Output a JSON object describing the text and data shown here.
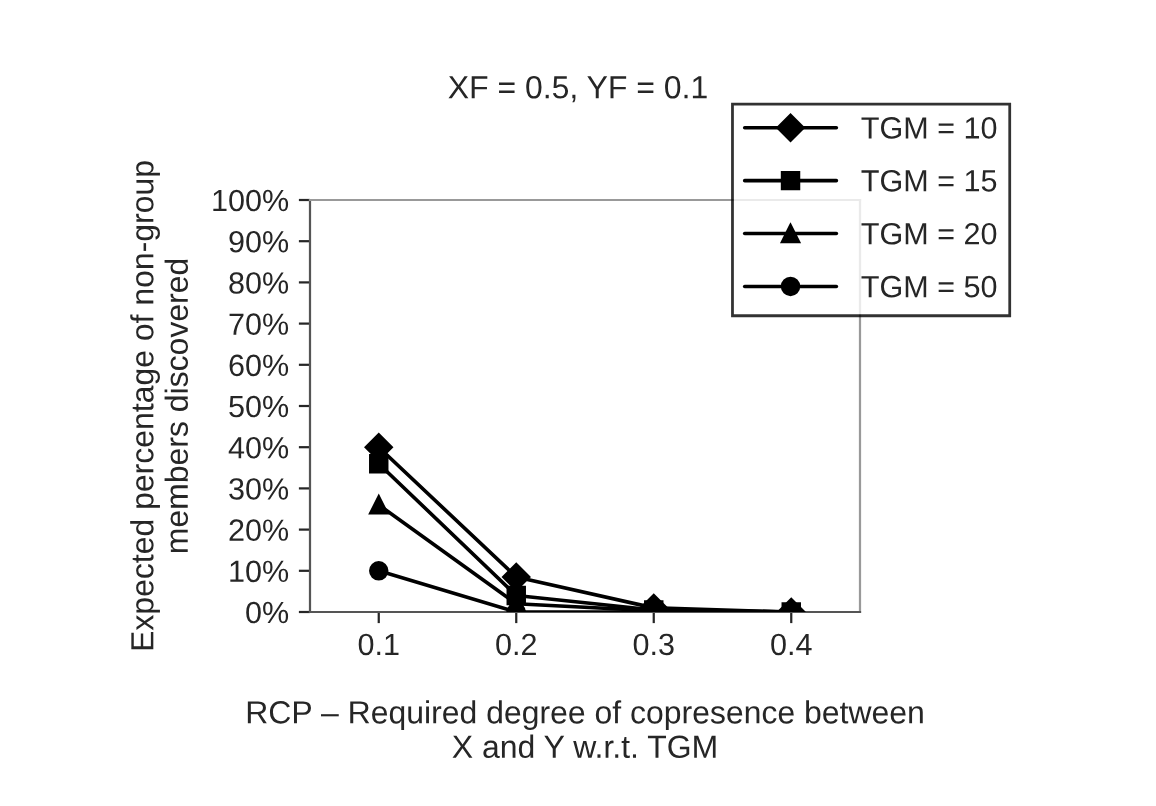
{
  "chart_data": {
    "type": "line",
    "title": "XF = 0.5, YF = 0.1",
    "xlabel": "RCP – Required degree of copresence between\nX and Y w.r.t. TGM",
    "ylabel": "Expected percentage of non-group\nmembers discovered",
    "categories": [
      "0.1",
      "0.2",
      "0.3",
      "0.4"
    ],
    "series": [
      {
        "name": "TGM = 10",
        "color": "#000000",
        "marker": "diamond",
        "values": [
          40,
          8.5,
          1,
          0
        ]
      },
      {
        "name": "TGM = 15",
        "color": "#000000",
        "marker": "square",
        "values": [
          36,
          4,
          0.5,
          0
        ]
      },
      {
        "name": "TGM = 20",
        "color": "#000000",
        "marker": "triangle",
        "values": [
          26,
          2,
          0.3,
          0
        ]
      },
      {
        "name": "TGM = 50",
        "color": "#000000",
        "marker": "circle",
        "values": [
          10,
          0,
          0,
          0
        ]
      }
    ],
    "ylim": [
      0,
      100
    ],
    "yticks": [
      {
        "value": 0,
        "label": "0%"
      },
      {
        "value": 10,
        "label": "10%"
      },
      {
        "value": 20,
        "label": "20%"
      },
      {
        "value": 30,
        "label": "30%"
      },
      {
        "value": 40,
        "label": "40%"
      },
      {
        "value": 50,
        "label": "50%"
      },
      {
        "value": 60,
        "label": "60%"
      },
      {
        "value": 70,
        "label": "70%"
      },
      {
        "value": 80,
        "label": "80%"
      },
      {
        "value": 90,
        "label": "90%"
      },
      {
        "value": 100,
        "label": "100%"
      }
    ],
    "grid": false,
    "legend": "top right",
    "line_style": "solid"
  }
}
